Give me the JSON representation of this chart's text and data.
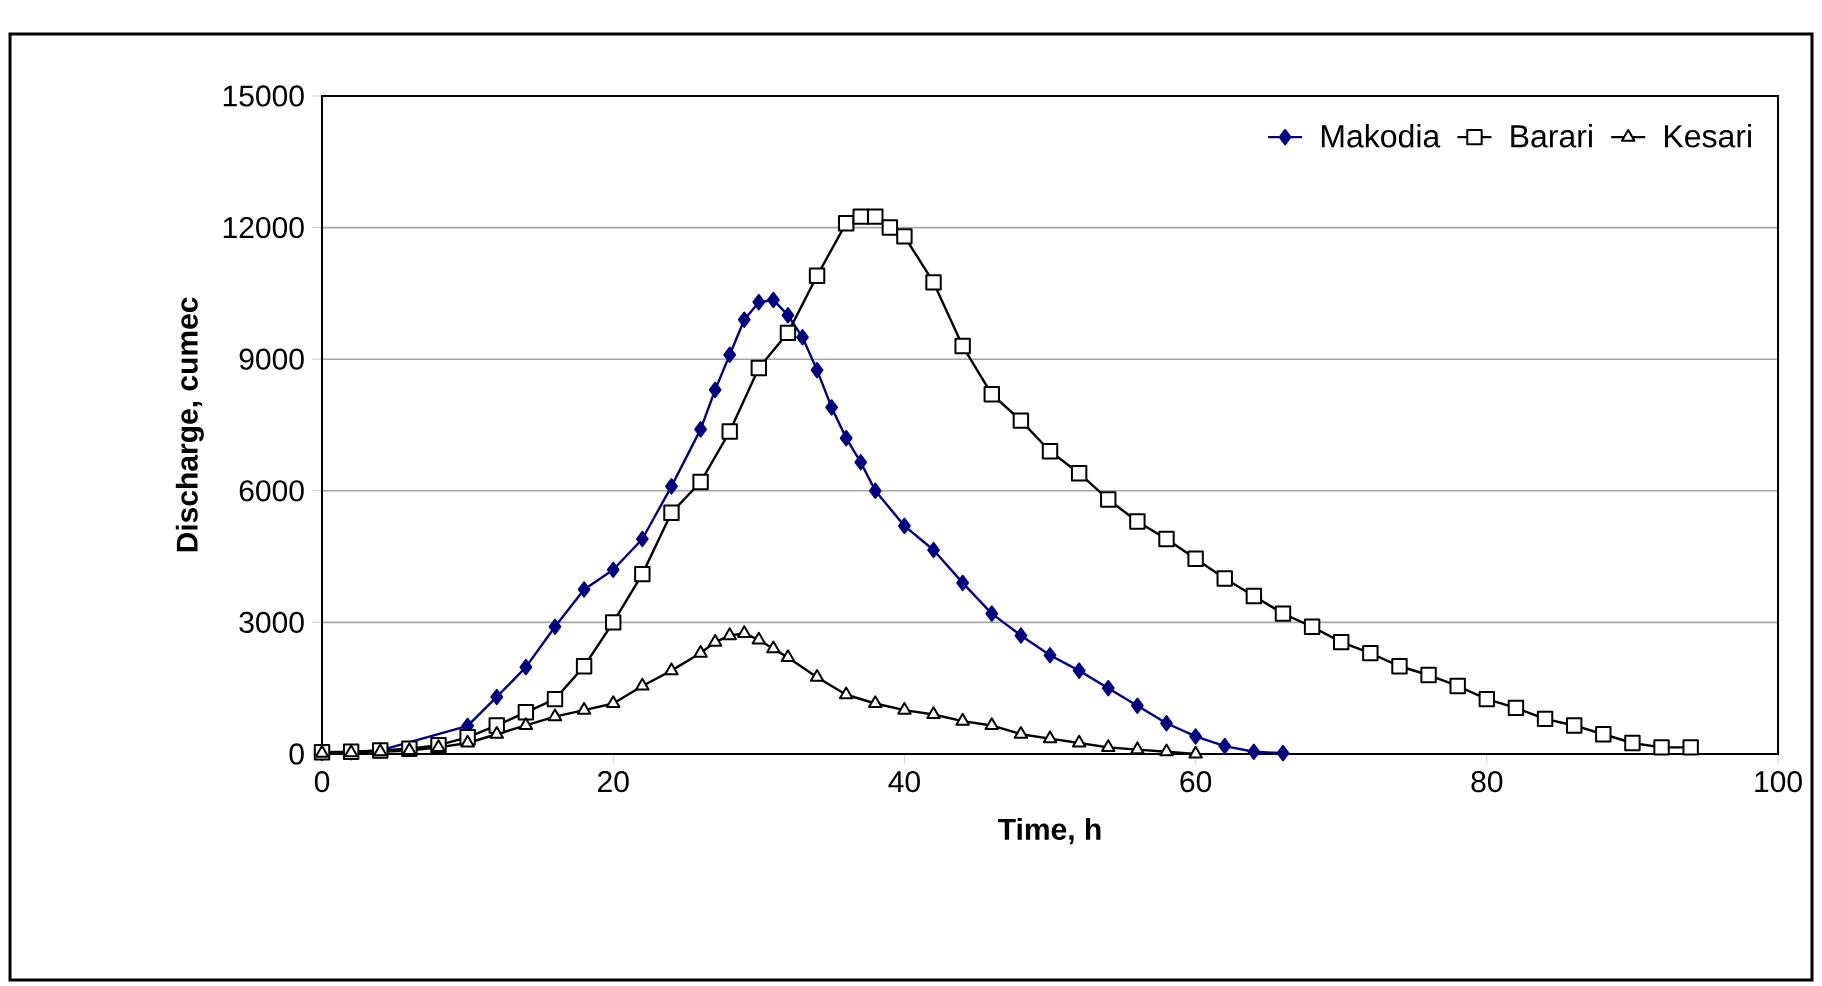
{
  "chart_data": {
    "type": "line",
    "xlabel": "Time, h",
    "ylabel": "Discharge, cumec",
    "xlim": [
      0,
      100
    ],
    "xticks": [
      0,
      20,
      40,
      60,
      80,
      100
    ],
    "ylim": [
      0,
      15000
    ],
    "yticks": [
      0,
      3000,
      6000,
      9000,
      12000,
      15000
    ],
    "grid": "y",
    "legend": "top right",
    "series": [
      {
        "name": "Makodia",
        "color": "#000080",
        "marker": "diamond",
        "x": [
          0,
          2,
          4,
          6,
          8,
          10,
          12,
          14,
          16,
          18,
          20,
          22,
          24,
          26,
          27,
          28,
          29,
          30,
          31,
          32,
          33,
          34,
          35,
          36,
          37,
          38,
          40,
          42,
          44,
          46,
          48,
          50,
          52,
          54,
          56,
          58,
          60,
          62,
          64,
          66
        ],
        "values": [
          30,
          40,
          80,
          null,
          null,
          640,
          1300,
          1980,
          2900,
          3750,
          4200,
          4900,
          6100,
          7400,
          8300,
          9100,
          9900,
          10300,
          10350,
          10000,
          9500,
          8750,
          7900,
          7200,
          6650,
          6000,
          5200,
          4650,
          3900,
          3200,
          2700,
          2250,
          1900,
          1500,
          1100,
          700,
          400,
          180,
          50,
          20
        ]
      },
      {
        "name": "Barari",
        "color": "#000000",
        "marker": "square",
        "x": [
          0,
          2,
          4,
          6,
          8,
          10,
          12,
          14,
          16,
          18,
          20,
          22,
          24,
          26,
          28,
          30,
          32,
          34,
          36,
          37,
          38,
          39,
          40,
          42,
          44,
          46,
          48,
          50,
          52,
          54,
          56,
          58,
          60,
          62,
          64,
          66,
          68,
          70,
          72,
          74,
          76,
          78,
          80,
          82,
          84,
          86,
          88,
          90,
          92,
          94
        ],
        "values": [
          40,
          50,
          80,
          120,
          200,
          380,
          650,
          950,
          1250,
          2000,
          3000,
          4100,
          5500,
          6200,
          7350,
          8800,
          9600,
          10900,
          12100,
          12250,
          12250,
          12000,
          11800,
          10750,
          9300,
          8200,
          7600,
          6900,
          6400,
          5800,
          5300,
          4900,
          4450,
          4000,
          3600,
          3200,
          2900,
          2550,
          2300,
          2000,
          1800,
          1550,
          1250,
          1050,
          800,
          650,
          450,
          250,
          150,
          150
        ]
      },
      {
        "name": "Kesari",
        "color": "#000000",
        "marker": "triangle",
        "x": [
          0,
          2,
          4,
          6,
          8,
          10,
          12,
          14,
          16,
          18,
          20,
          22,
          24,
          26,
          27,
          28,
          29,
          30,
          31,
          32,
          34,
          36,
          38,
          40,
          42,
          44,
          46,
          48,
          50,
          52,
          54,
          56,
          58,
          60
        ],
        "values": [
          20,
          30,
          50,
          80,
          150,
          250,
          450,
          650,
          850,
          1000,
          1150,
          1550,
          1900,
          2300,
          2550,
          2700,
          2750,
          2600,
          2400,
          2200,
          1750,
          1350,
          1150,
          1000,
          900,
          750,
          650,
          450,
          350,
          250,
          150,
          100,
          50,
          0
        ]
      }
    ]
  }
}
